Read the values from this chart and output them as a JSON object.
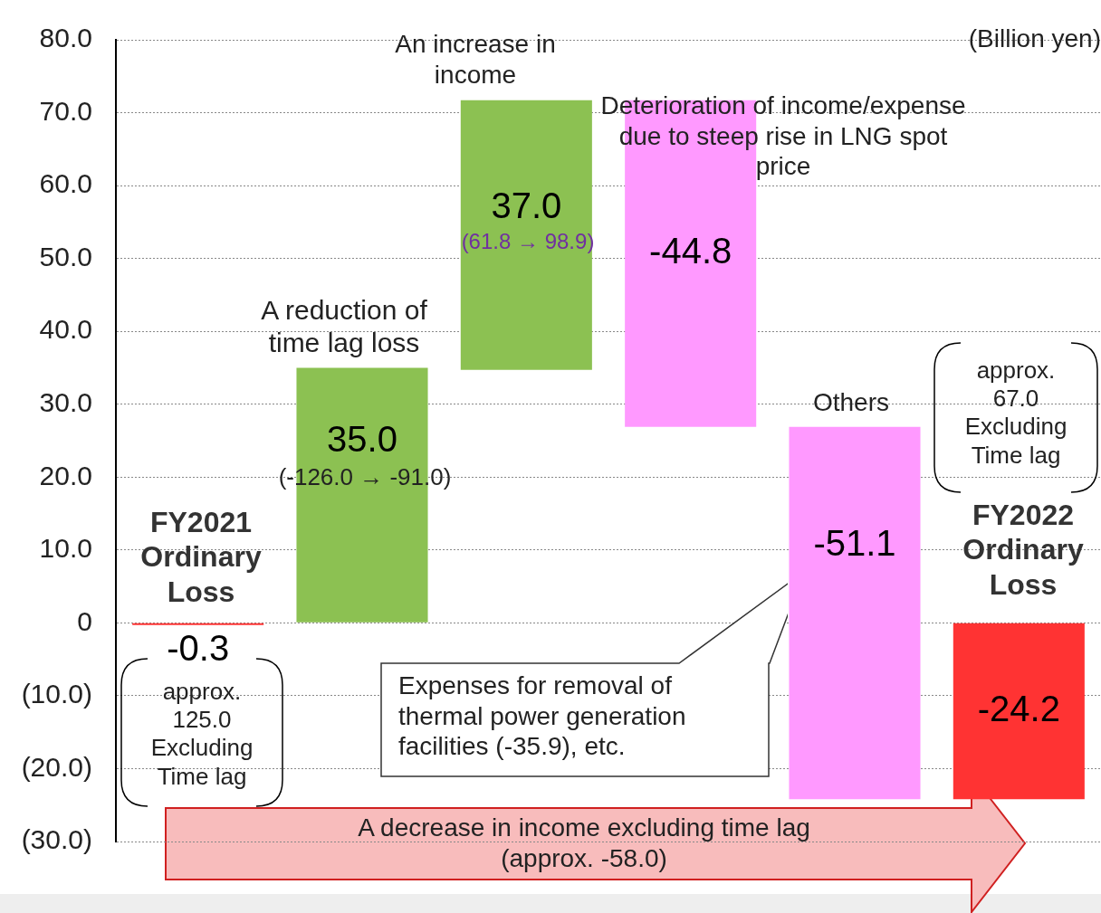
{
  "chart_data": {
    "type": "bar",
    "categories": [
      null,
      null,
      null,
      null,
      null,
      null
    ],
    "values": [
      -0.3,
      35.0,
      37.0,
      -44.8,
      -51.1,
      -24.2
    ],
    "base": [
      0,
      0,
      34.7,
      71.7,
      26.9,
      0
    ],
    "colors": [
      "#ff3333",
      "#8cc152",
      "#8cc152",
      "#ff99ff",
      "#ff99ff",
      "#ff3333"
    ],
    "value_labels": [
      "-0.3",
      "35.0",
      "37.0",
      "-44.8",
      "-51.1",
      "-24.2"
    ],
    "ylim": [
      -30,
      80
    ],
    "yticks": [
      {
        "value": -30,
        "label": "(30.0)"
      },
      {
        "value": -20,
        "label": "(20.0)"
      },
      {
        "value": -10,
        "label": "(10.0)"
      },
      0,
      {
        "value": 10,
        "label": "10.0"
      },
      {
        "value": 20,
        "label": "20.0"
      },
      {
        "value": 30,
        "label": "30.0"
      },
      {
        "value": 40,
        "label": "40.0"
      },
      {
        "value": 50,
        "label": "50.0"
      },
      {
        "value": 60,
        "label": "60.0"
      },
      {
        "value": 70,
        "label": "70.0"
      },
      {
        "value": 80,
        "label": "80.0"
      }
    ],
    "grid": "y",
    "legend": false,
    "tick_labels": "y",
    "annotations": [
      "(Billion yen)",
      "A reduction of time lag loss",
      "(-126.0 → -91.0)",
      "An increase in income",
      "(61.8 → 98.9)",
      "Deterioration of income/expense due to steep rise in LNG spot price",
      "Others",
      "FY2021 Ordinary Loss",
      "FY2022 Ordinary Loss",
      "approx. 125.0 Excluding Time lag",
      "approx. 67.0 Excluding Time lag",
      "Expenses for removal of thermal power generation facilities (-35.9), etc.",
      "A decrease in income excluding time lag (approx. -58.0)"
    ]
  }
}
